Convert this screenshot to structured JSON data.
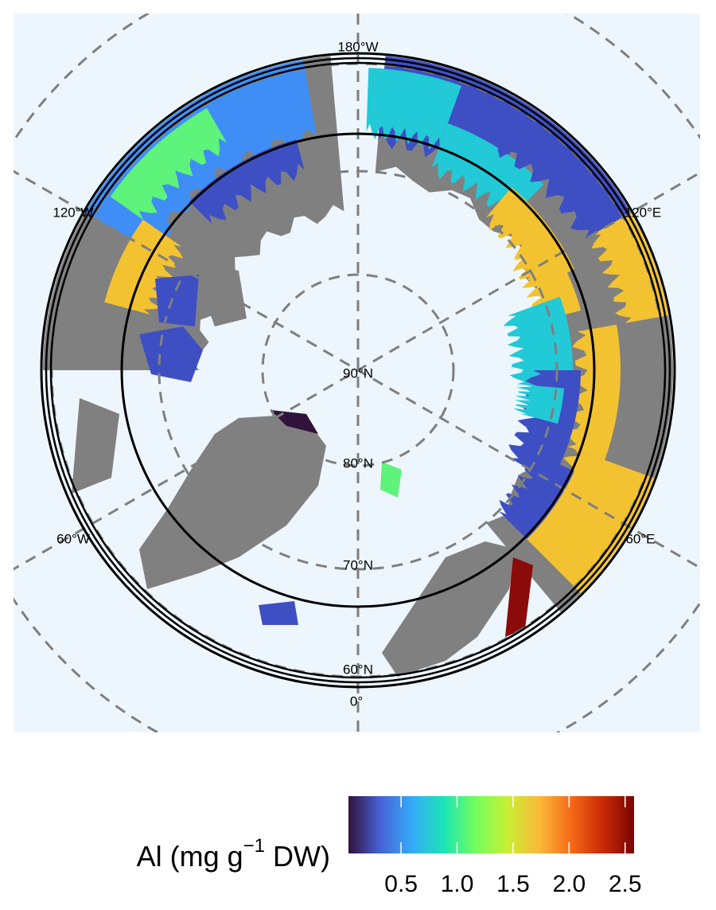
{
  "map": {
    "latitude_labels": [
      "90°N",
      "80°N",
      "70°N",
      "60°N"
    ],
    "longitude_labels": [
      "180°W",
      "120°E",
      "60°E",
      "0°",
      "60°W",
      "120°W"
    ]
  },
  "colorbar": {
    "title": "Al (mg g",
    "title_superscript": "−1",
    "title_end": " DW)",
    "lim": [
      0.03,
      2.58
    ],
    "ticks": [
      0.5,
      {
        "value": 1,
        "label": "1.0"
      },
      1.5,
      {
        "value": 2,
        "label": "2.0"
      },
      2.5
    ],
    "colors": [
      "#30123b",
      "#4662d7",
      "#36aaf9",
      "#1ae4b6",
      "#72fe5e",
      "#c8ef34",
      "#faba39",
      "#f66b19",
      "#cb2a04",
      "#7a0403"
    ]
  }
}
